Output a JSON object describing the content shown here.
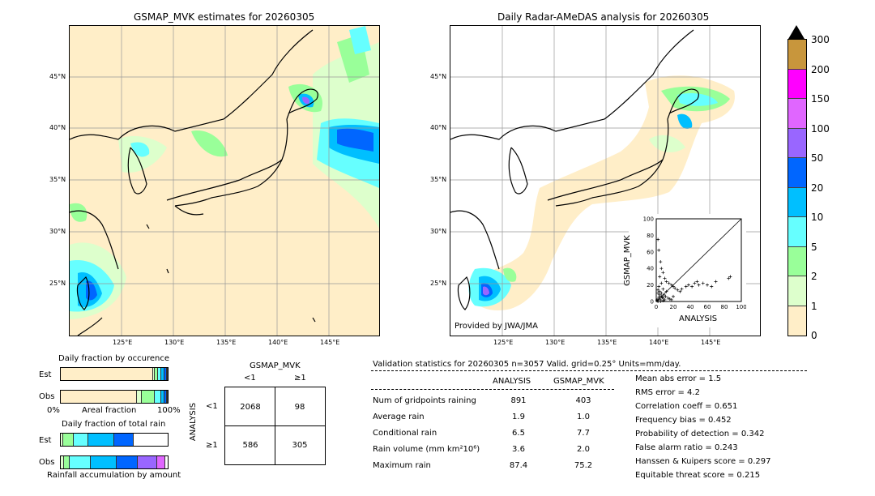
{
  "left_map": {
    "title": "GSMAP_MVK estimates for 20260305",
    "lat_labels": [
      "45°N",
      "40°N",
      "35°N",
      "30°N",
      "25°N"
    ],
    "lon_labels": [
      "125°E",
      "130°E",
      "135°E",
      "140°E",
      "145°E"
    ]
  },
  "right_map": {
    "title": "Daily Radar-AMeDAS analysis for 20260305",
    "lat_labels": [
      "45°N",
      "40°N",
      "35°N",
      "30°N",
      "25°N"
    ],
    "lon_labels": [
      "125°E",
      "130°E",
      "135°E",
      "140°E",
      "145°E"
    ],
    "credit": "Provided by JWA/JMA"
  },
  "scatter": {
    "xlabel": "ANALYSIS",
    "ylabel": "GSMAP_MVK",
    "ticks": [
      "0",
      "20",
      "40",
      "60",
      "80",
      "100"
    ]
  },
  "colorbar": {
    "labels": [
      "300",
      "200",
      "150",
      "100",
      "50",
      "20",
      "10",
      "5",
      "2",
      "1",
      "0"
    ],
    "colors": [
      "#c8963c",
      "#ff00ff",
      "#e066ff",
      "#9966ff",
      "#0066ff",
      "#00bfff",
      "#66ffff",
      "#99ff99",
      "#ddffcc",
      "#ffeec8"
    ]
  },
  "fraction_occurrence": {
    "title": "Daily fraction by occurence",
    "rows": [
      "Est",
      "Obs"
    ],
    "xlabel_left": "0%",
    "xlabel_mid": "Areal fraction",
    "xlabel_right": "100%"
  },
  "fraction_rain": {
    "title": "Daily fraction of total rain",
    "rows": [
      "Est",
      "Obs"
    ],
    "xlabel": "Rainfall accumulation by amount"
  },
  "contingency": {
    "title": "GSMAP_MVK",
    "col_lt": "<1",
    "col_ge": "≥1",
    "row_label": "ANALYSIS",
    "row_lt": "<1",
    "row_ge": "≥1",
    "a": "2068",
    "b": "98",
    "c": "586",
    "d": "305"
  },
  "validation": {
    "header": "Validation statistics for 20260305  n=3057 Valid. grid=0.25° Units=mm/day.",
    "col_analysis": "ANALYSIS",
    "col_gsmap": "GSMAP_MVK",
    "rows": [
      {
        "name": "Num of gridpoints raining",
        "analysis": "891",
        "gsmap": "403"
      },
      {
        "name": "Average rain",
        "analysis": "1.9",
        "gsmap": "1.0"
      },
      {
        "name": "Conditional rain",
        "analysis": "6.5",
        "gsmap": "7.7"
      },
      {
        "name": "Rain volume (mm km²10⁶)",
        "analysis": "3.6",
        "gsmap": "2.0"
      },
      {
        "name": "Maximum rain",
        "analysis": "87.4",
        "gsmap": "75.2"
      }
    ],
    "scores": [
      "Mean abs error =    1.5",
      "RMS error =    4.2",
      "Correlation coeff =  0.651",
      "Frequency bias =  0.452",
      "Probability of detection =  0.342",
      "False alarm ratio =  0.243",
      "Hanssen & Kuipers score =  0.297",
      "Equitable threat score =  0.215"
    ]
  },
  "chart_data": [
    {
      "type": "scatter",
      "title": "",
      "xlabel": "ANALYSIS",
      "ylabel": "GSMAP_MVK",
      "xlim": [
        0,
        100
      ],
      "ylim": [
        0,
        100
      ],
      "points": [
        [
          2,
          75
        ],
        [
          3,
          62
        ],
        [
          5,
          48
        ],
        [
          6,
          40
        ],
        [
          8,
          35
        ],
        [
          4,
          30
        ],
        [
          10,
          28
        ],
        [
          12,
          24
        ],
        [
          6,
          22
        ],
        [
          15,
          22
        ],
        [
          18,
          20
        ],
        [
          20,
          18
        ],
        [
          3,
          18
        ],
        [
          8,
          15
        ],
        [
          22,
          16
        ],
        [
          25,
          14
        ],
        [
          28,
          12
        ],
        [
          12,
          12
        ],
        [
          30,
          15
        ],
        [
          35,
          18
        ],
        [
          38,
          20
        ],
        [
          42,
          18
        ],
        [
          45,
          22
        ],
        [
          48,
          24
        ],
        [
          50,
          20
        ],
        [
          55,
          22
        ],
        [
          60,
          20
        ],
        [
          65,
          18
        ],
        [
          70,
          24
        ],
        [
          85,
          28
        ],
        [
          87,
          30
        ],
        [
          2,
          10
        ],
        [
          4,
          8
        ],
        [
          6,
          6
        ],
        [
          8,
          4
        ],
        [
          10,
          2
        ],
        [
          1,
          2
        ],
        [
          3,
          3
        ],
        [
          5,
          2
        ],
        [
          7,
          5
        ],
        [
          9,
          8
        ],
        [
          11,
          6
        ],
        [
          14,
          4
        ],
        [
          16,
          3
        ],
        [
          18,
          2
        ],
        [
          20,
          6
        ],
        [
          2,
          14
        ],
        [
          4,
          12
        ],
        [
          6,
          10
        ],
        [
          3,
          5
        ],
        [
          1,
          1
        ],
        [
          2,
          0
        ],
        [
          5,
          0
        ],
        [
          8,
          1
        ]
      ]
    },
    {
      "type": "bar",
      "title": "Daily fraction by occurence",
      "xlabel": "Areal fraction",
      "categories": [
        "Est",
        "Obs"
      ],
      "series": [
        {
          "name": "0",
          "values": [
            0.86,
            0.71
          ]
        },
        {
          "name": "1",
          "values": [
            0.02,
            0.05
          ]
        },
        {
          "name": "2",
          "values": [
            0.03,
            0.12
          ]
        },
        {
          "name": "5",
          "values": [
            0.03,
            0.06
          ]
        },
        {
          "name": "10",
          "values": [
            0.03,
            0.03
          ]
        },
        {
          "name": "20",
          "values": [
            0.02,
            0.02
          ]
        },
        {
          "name": "50",
          "values": [
            0.01,
            0.01
          ]
        }
      ]
    },
    {
      "type": "bar",
      "title": "Daily fraction of total rain",
      "xlabel": "Rainfall accumulation by amount",
      "categories": [
        "Est",
        "Obs"
      ],
      "series": [
        {
          "name": "1",
          "values": [
            0.02,
            0.03
          ]
        },
        {
          "name": "2",
          "values": [
            0.1,
            0.05
          ]
        },
        {
          "name": "5",
          "values": [
            0.14,
            0.2
          ]
        },
        {
          "name": "10",
          "values": [
            0.24,
            0.24
          ]
        },
        {
          "name": "20",
          "values": [
            0.18,
            0.2
          ]
        },
        {
          "name": "50",
          "values": [
            0.0,
            0.18
          ]
        },
        {
          "name": "100",
          "values": [
            0.0,
            0.08
          ]
        }
      ]
    }
  ]
}
